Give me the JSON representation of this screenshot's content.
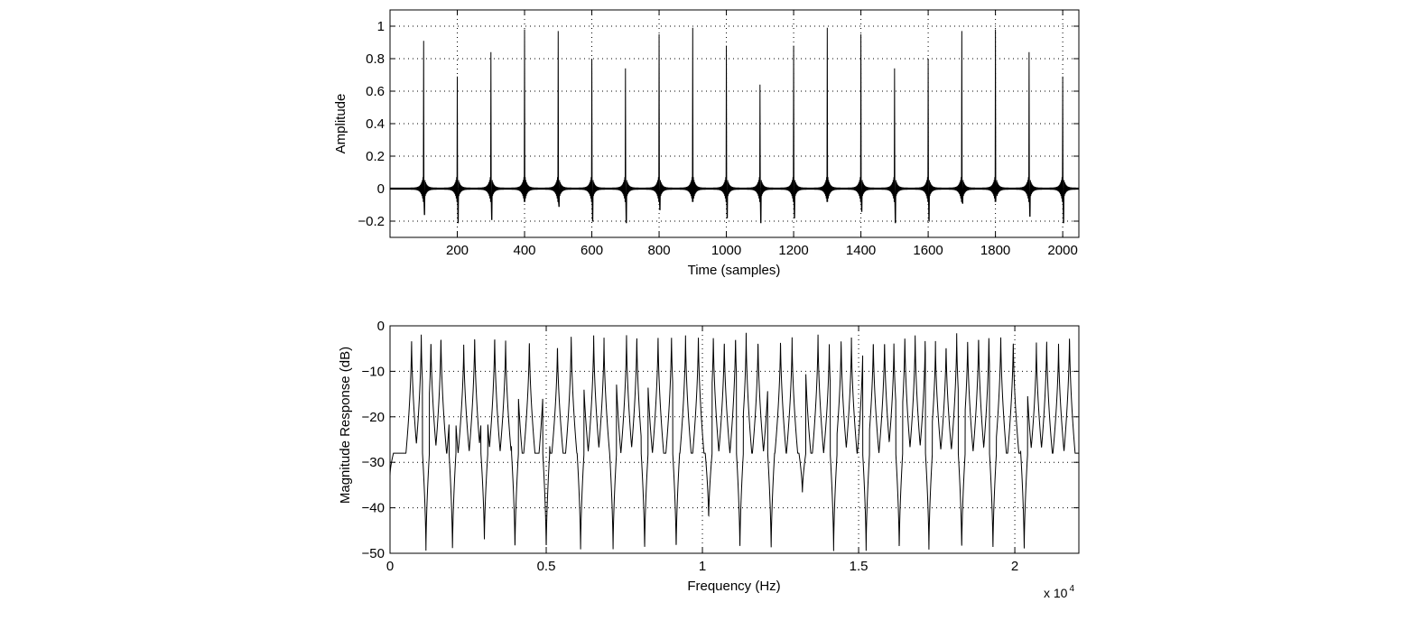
{
  "chart_data": [
    {
      "type": "line",
      "title": "",
      "xlabel": "Time (samples)",
      "ylabel": "Amplitude",
      "xlim": [
        0,
        2048
      ],
      "ylim": [
        -0.3,
        1.1
      ],
      "grid": true,
      "xticks": [
        200,
        400,
        600,
        800,
        1000,
        1200,
        1400,
        1600,
        1800,
        2000
      ],
      "xtick_labels": [
        "200",
        "400",
        "600",
        "800",
        "1000",
        "1200",
        "1400",
        "1600",
        "1800",
        "2000"
      ],
      "yticks": [
        -0.2,
        0,
        0.2,
        0.4,
        0.6,
        0.8,
        1
      ],
      "ytick_labels": [
        "−0.2",
        "0",
        "0.2",
        "0.4",
        "0.6",
        "0.8",
        "1"
      ],
      "pulse_times": [
        100,
        200,
        300,
        400,
        500,
        600,
        700,
        800,
        900,
        1000,
        1100,
        1200,
        1300,
        1400,
        1500,
        1600,
        1700,
        1800,
        1900,
        2000
      ],
      "pulse_peaks": [
        0.91,
        0.69,
        0.84,
        0.98,
        0.97,
        0.8,
        0.74,
        0.95,
        0.99,
        0.88,
        0.64,
        0.88,
        0.99,
        0.95,
        0.74,
        0.8,
        0.97,
        0.98,
        0.84,
        0.69
      ],
      "pulse_troughs": [
        -0.16,
        -0.21,
        -0.19,
        0,
        -0.11,
        -0.2,
        -0.21,
        -0.13,
        0,
        -0.18,
        -0.21,
        -0.18,
        0,
        -0.14,
        -0.21,
        -0.2,
        -0.09,
        -0.03,
        -0.17,
        -0.21
      ]
    },
    {
      "type": "line",
      "title": "",
      "xlabel": "Frequency (Hz)",
      "ylabel": "Magnitude Response (dB)",
      "xlim": [
        0,
        22050
      ],
      "ylim": [
        -50,
        0
      ],
      "grid": true,
      "x_multiplier_label": "x 10",
      "x_multiplier_exponent": "4",
      "xticks": [
        0,
        5000,
        10000,
        15000,
        20000
      ],
      "xtick_labels": [
        "0",
        "0.5",
        "1",
        "1.5",
        "2"
      ],
      "yticks": [
        -50,
        -40,
        -30,
        -20,
        -10,
        0
      ],
      "ytick_labels": [
        "−50",
        "−40",
        "−30",
        "−20",
        "−10",
        "0"
      ],
      "peak_freqs": [
        690,
        1000,
        1310,
        1630,
        2000,
        2360,
        2710,
        3020,
        3350,
        3700,
        4050,
        4460,
        4950,
        5360,
        5800,
        6170,
        6520,
        6850,
        7210,
        7570,
        7900,
        8220,
        8580,
        9010,
        9460,
        9870,
        10350,
        10700,
        11060,
        11400,
        11780,
        12130,
        12500,
        12870,
        13290,
        13700,
        14060,
        14440,
        14770,
        15140,
        15470,
        15830,
        16130,
        16480,
        16810,
        17130,
        17460,
        17800,
        18140,
        18490,
        18840,
        19170,
        19550,
        19950,
        20360,
        20690,
        21020,
        21400,
        21750
      ],
      "peak_levels": [
        -2,
        -1,
        -2,
        -1,
        -1,
        -3,
        -1,
        -1,
        -1,
        -2,
        -1,
        -2,
        -1,
        -3,
        -1,
        -3,
        -1,
        -2,
        -1,
        -1,
        -1,
        -2,
        -1,
        -1,
        -1,
        -1,
        -1,
        -2,
        -1,
        -1,
        -2,
        -3,
        -2,
        -2,
        -3,
        -1,
        -3,
        -2,
        -2,
        -1,
        -2,
        -2,
        -3,
        -1,
        -1,
        -2,
        -3,
        -3,
        -1,
        -2,
        -1,
        -1,
        -1,
        -2,
        -3,
        -3,
        -2,
        -3,
        -1
      ],
      "notch_freqs": [
        0,
        1150,
        2000,
        3020,
        4000,
        5000,
        6100,
        7140,
        8150,
        9160,
        10200,
        11200,
        12200,
        13200,
        14200,
        15240,
        16300,
        17250,
        18300,
        19300,
        20300
      ],
      "notch_levels": [
        -33,
        -50,
        -50,
        -48,
        -50,
        -50,
        -50,
        -50,
        -50,
        -50,
        -43,
        -50,
        -50,
        -37,
        -50,
        -50,
        -50,
        -50,
        -50,
        -50,
        -50
      ],
      "baseline_level": -28
    }
  ]
}
